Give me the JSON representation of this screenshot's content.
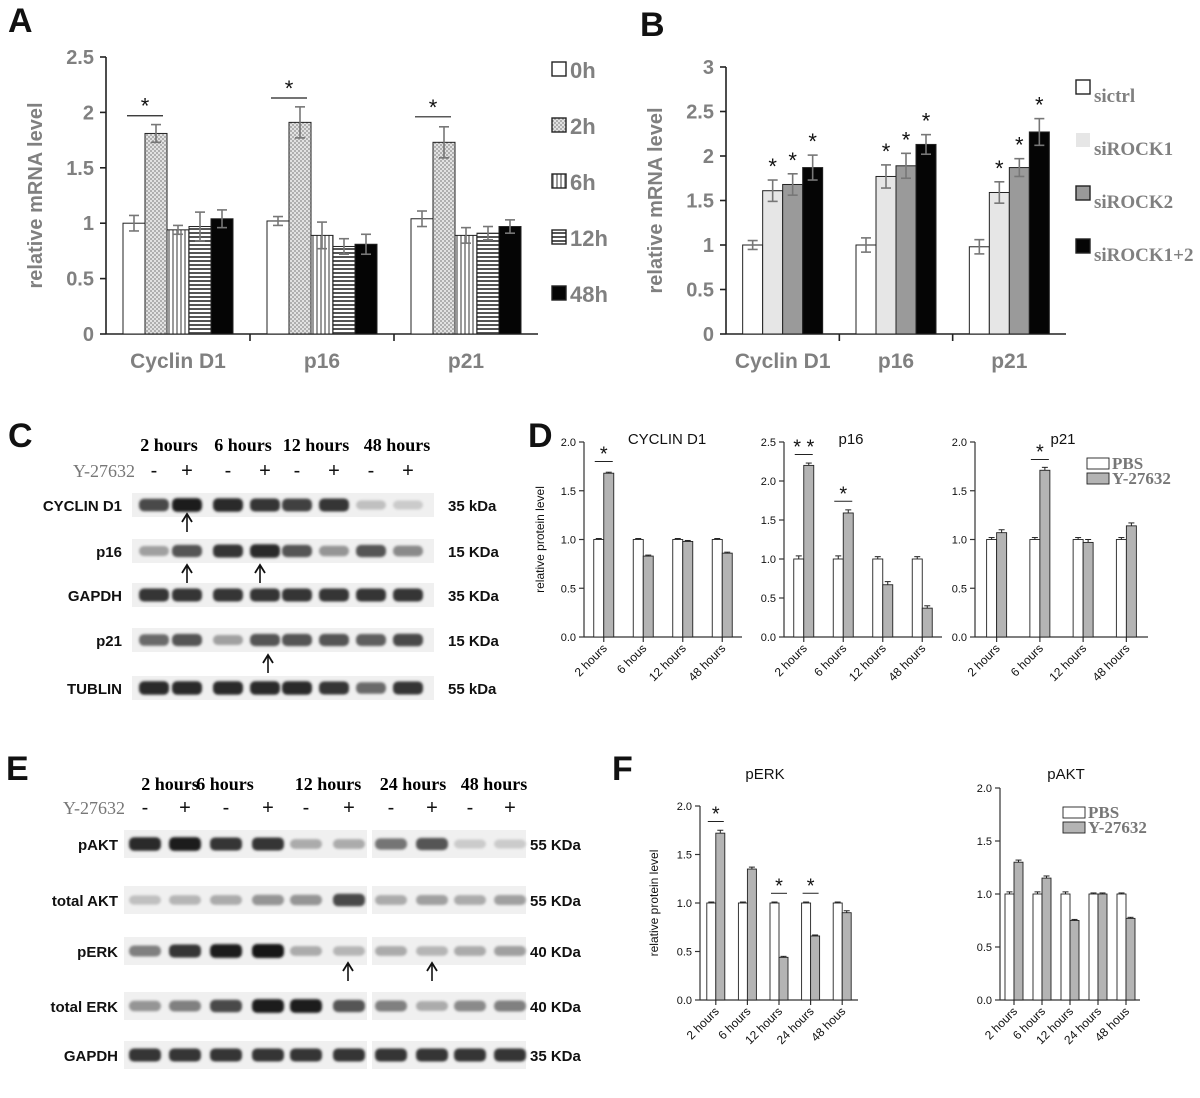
{
  "panels": {
    "A": "A",
    "B": "B",
    "C": "C",
    "D": "D",
    "E": "E",
    "F": "F"
  },
  "colors": {
    "open": "#ffffff",
    "gray": "#b4b4b4",
    "lightgray": "#e6e6e6",
    "midgray": "#9a9a9a",
    "black": "#050505",
    "band": "#1a1a1a"
  },
  "blotC": {
    "timepoints": [
      "2 hours",
      "6 hours",
      "12 hours",
      "48 hours"
    ],
    "treatment": "Y-27632",
    "signs": [
      "-",
      "+",
      "-",
      "+",
      "-",
      "+",
      "-",
      "+"
    ],
    "rows": [
      {
        "label": "CYCLIN D1",
        "kda": "35 kDa",
        "intensity": [
          0.75,
          0.95,
          0.9,
          0.85,
          0.8,
          0.85,
          0.2,
          0.15
        ]
      },
      {
        "label": "p16",
        "kda": "15 KDa",
        "intensity": [
          0.35,
          0.7,
          0.85,
          0.9,
          0.7,
          0.4,
          0.7,
          0.45
        ]
      },
      {
        "label": "GAPDH",
        "kda": "35 KDa",
        "intensity": [
          0.85,
          0.85,
          0.85,
          0.85,
          0.85,
          0.85,
          0.85,
          0.85
        ]
      },
      {
        "label": "p21",
        "kda": "15 KDa",
        "intensity": [
          0.6,
          0.7,
          0.35,
          0.7,
          0.7,
          0.7,
          0.65,
          0.75
        ]
      },
      {
        "label": "TUBLIN",
        "kda": "55 kDa",
        "intensity": [
          0.9,
          0.9,
          0.9,
          0.9,
          0.9,
          0.85,
          0.6,
          0.85
        ]
      }
    ]
  },
  "blotE": {
    "timepoints": [
      "2 hours",
      "6 hours",
      "12 hours",
      "24 hours",
      "48 hours"
    ],
    "treatment": "Y-27632",
    "signs": [
      "-",
      "+",
      "-",
      "+",
      "-",
      "+",
      "-",
      "+",
      "-",
      "+"
    ],
    "rows": [
      {
        "label": "pAKT",
        "kda": "55 KDa",
        "intensity": [
          0.9,
          0.95,
          0.85,
          0.85,
          0.3,
          0.3,
          0.55,
          0.7,
          0.15,
          0.15
        ]
      },
      {
        "label": "total AKT",
        "kda": "55 KDa",
        "intensity": [
          0.2,
          0.25,
          0.3,
          0.4,
          0.4,
          0.75,
          0.3,
          0.35,
          0.3,
          0.35
        ]
      },
      {
        "label": "pERK",
        "kda": "40 KDa",
        "intensity": [
          0.5,
          0.85,
          0.95,
          1.0,
          0.3,
          0.25,
          0.3,
          0.25,
          0.3,
          0.35
        ]
      },
      {
        "label": "total ERK",
        "kda": "40 KDa",
        "intensity": [
          0.4,
          0.5,
          0.75,
          0.95,
          0.95,
          0.7,
          0.5,
          0.3,
          0.45,
          0.5
        ]
      },
      {
        "label": "GAPDH",
        "kda": "35 KDa",
        "intensity": [
          0.85,
          0.85,
          0.85,
          0.85,
          0.85,
          0.85,
          0.85,
          0.85,
          0.85,
          0.85
        ]
      }
    ]
  },
  "chart_data": [
    {
      "panel": "A",
      "type": "bar",
      "ylabel": "relative mRNA level",
      "ylim": [
        0,
        2.5
      ],
      "yticks": [
        "0",
        "0.5",
        "1",
        "1.5",
        "2",
        "2.5"
      ],
      "categories": [
        "Cyclin D1",
        "p16",
        "p21"
      ],
      "legend_position": "right",
      "series": [
        {
          "name": "0h",
          "values": [
            1.0,
            1.02,
            1.04
          ],
          "errors": [
            0.07,
            0.04,
            0.07
          ],
          "pattern": "open"
        },
        {
          "name": "2h",
          "values": [
            1.81,
            1.91,
            1.73
          ],
          "errors": [
            0.08,
            0.14,
            0.14
          ],
          "pattern": "dots"
        },
        {
          "name": "6h",
          "values": [
            0.94,
            0.89,
            0.89
          ],
          "errors": [
            0.04,
            0.12,
            0.07
          ],
          "pattern": "vstripes"
        },
        {
          "name": "12h",
          "values": [
            0.97,
            0.79,
            0.91
          ],
          "errors": [
            0.13,
            0.07,
            0.06
          ],
          "pattern": "hstripes"
        },
        {
          "name": "48h",
          "values": [
            1.04,
            0.81,
            0.97
          ],
          "errors": [
            0.08,
            0.09,
            0.06
          ],
          "pattern": "solid"
        }
      ],
      "annotations": [
        {
          "label": "*",
          "category": 0,
          "from": 0,
          "to": 1,
          "y": 1.97
        },
        {
          "label": "*",
          "category": 1,
          "from": 0,
          "to": 1,
          "y": 2.13
        },
        {
          "label": "*",
          "category": 2,
          "from": 0,
          "to": 1,
          "y": 1.96
        }
      ]
    },
    {
      "panel": "B",
      "type": "bar",
      "ylabel": "relative mRNA level",
      "ylim": [
        0,
        3
      ],
      "yticks": [
        "0",
        "0.5",
        "1",
        "1.5",
        "2",
        "2.5",
        "3"
      ],
      "categories": [
        "Cyclin D1",
        "p16",
        "p21"
      ],
      "legend_position": "right",
      "series": [
        {
          "name": "sictrl",
          "values": [
            1.0,
            1.0,
            0.98
          ],
          "errors": [
            0.05,
            0.08,
            0.08
          ],
          "pattern": "open"
        },
        {
          "name": "siROCK1",
          "values": [
            1.61,
            1.77,
            1.59
          ],
          "errors": [
            0.12,
            0.13,
            0.12
          ],
          "pattern": "lightgray"
        },
        {
          "name": "siROCK2",
          "values": [
            1.68,
            1.89,
            1.87
          ],
          "errors": [
            0.12,
            0.14,
            0.1
          ],
          "pattern": "midgray"
        },
        {
          "name": "siROCK1+2",
          "values": [
            1.87,
            2.13,
            2.27
          ],
          "errors": [
            0.14,
            0.11,
            0.15
          ],
          "pattern": "solid"
        }
      ],
      "annotations": [
        {
          "label": "*",
          "category": 0,
          "series": 1
        },
        {
          "label": "*",
          "category": 0,
          "series": 2
        },
        {
          "label": "*",
          "category": 0,
          "series": 3
        },
        {
          "label": "*",
          "category": 1,
          "series": 1
        },
        {
          "label": "*",
          "category": 1,
          "series": 2
        },
        {
          "label": "*",
          "category": 1,
          "series": 3
        },
        {
          "label": "*",
          "category": 2,
          "series": 1
        },
        {
          "label": "*",
          "category": 2,
          "series": 2
        },
        {
          "label": "*",
          "category": 2,
          "series": 3
        }
      ]
    },
    {
      "panel": "D1",
      "type": "bar",
      "title": "CYCLIN D1",
      "ylabel": "relative protein level",
      "ylim": [
        0,
        2.0
      ],
      "yticks": [
        "0.0",
        "0.5",
        "1.0",
        "1.5",
        "2.0"
      ],
      "categories": [
        "2 hours",
        "6 hous",
        "12 hours",
        "48 hours"
      ],
      "series": [
        {
          "name": "PBS",
          "values": [
            1.0,
            1.0,
            1.0,
            1.0
          ],
          "errors": [
            0.01,
            0.01,
            0.01,
            0.01
          ]
        },
        {
          "name": "Y-27632",
          "values": [
            1.68,
            0.83,
            0.98,
            0.86
          ],
          "errors": [
            0.01,
            0.01,
            0.01,
            0.01
          ]
        }
      ],
      "annotations": [
        {
          "label": "*",
          "category": 0,
          "y": 1.8
        }
      ]
    },
    {
      "panel": "D2",
      "type": "bar",
      "title": "p16",
      "ylim": [
        0,
        2.5
      ],
      "yticks": [
        "0.0",
        "0.5",
        "1.0",
        "1.5",
        "2.0",
        "2.5"
      ],
      "categories": [
        "2 hours",
        "6 hours",
        "12 hours",
        "48 hours"
      ],
      "series": [
        {
          "name": "PBS",
          "values": [
            1.0,
            1.0,
            1.0,
            1.0
          ],
          "errors": [
            0.04,
            0.04,
            0.03,
            0.03
          ]
        },
        {
          "name": "Y-27632",
          "values": [
            2.2,
            1.59,
            0.67,
            0.37
          ],
          "errors": [
            0.03,
            0.04,
            0.04,
            0.03
          ]
        }
      ],
      "annotations": [
        {
          "label": "* *",
          "category": 0,
          "y": 2.34
        },
        {
          "label": "*",
          "category": 1,
          "y": 1.74
        }
      ]
    },
    {
      "panel": "D3",
      "type": "bar",
      "title": "p21",
      "ylim": [
        0,
        2.0
      ],
      "yticks": [
        "0.0",
        "0.5",
        "1.0",
        "1.5",
        "2.0"
      ],
      "categories": [
        "2 hours",
        "6 hours",
        "12 hours",
        "48 hours"
      ],
      "legend_position": "top-right",
      "series": [
        {
          "name": "PBS",
          "values": [
            1.0,
            1.0,
            1.0,
            1.0
          ],
          "errors": [
            0.02,
            0.02,
            0.02,
            0.02
          ]
        },
        {
          "name": "Y-27632",
          "values": [
            1.07,
            1.71,
            0.97,
            1.14
          ],
          "errors": [
            0.03,
            0.03,
            0.03,
            0.03
          ]
        }
      ],
      "annotations": [
        {
          "label": "*",
          "category": 1,
          "y": 1.82
        }
      ]
    },
    {
      "panel": "F1",
      "type": "bar",
      "title": "pERK",
      "ylabel": "relative protein level",
      "ylim": [
        0,
        2.0
      ],
      "yticks": [
        "0.0",
        "0.5",
        "1.0",
        "1.5",
        "2.0"
      ],
      "categories": [
        "2 hours",
        "6 hours",
        "12 hours",
        "24 hours",
        "48 hous"
      ],
      "series": [
        {
          "name": "PBS",
          "values": [
            1.0,
            1.0,
            1.0,
            1.0,
            1.0
          ],
          "errors": [
            0.01,
            0.01,
            0.01,
            0.01,
            0.01
          ]
        },
        {
          "name": "Y-27632",
          "values": [
            1.72,
            1.35,
            0.44,
            0.66,
            0.9
          ],
          "errors": [
            0.03,
            0.02,
            0.01,
            0.01,
            0.02
          ]
        }
      ],
      "annotations": [
        {
          "label": "*",
          "category": 0,
          "y": 1.84
        },
        {
          "label": "*",
          "category": 2,
          "y": 1.1
        },
        {
          "label": "*",
          "category": 3,
          "y": 1.1
        }
      ]
    },
    {
      "panel": "F2",
      "type": "bar",
      "title": "pAKT",
      "ylim": [
        0,
        2.0
      ],
      "yticks": [
        "0.0",
        "0.5",
        "1.0",
        "1.5",
        "2.0"
      ],
      "categories": [
        "2 hours",
        "6 hours",
        "12 hours",
        "24 hours",
        "48 hous"
      ],
      "legend_position": "top-right",
      "series": [
        {
          "name": "PBS",
          "values": [
            1.0,
            1.0,
            1.0,
            1.0,
            1.0
          ],
          "errors": [
            0.02,
            0.02,
            0.02,
            0.01,
            0.01
          ]
        },
        {
          "name": "Y-27632",
          "values": [
            1.3,
            1.15,
            0.75,
            1.0,
            0.77
          ],
          "errors": [
            0.02,
            0.02,
            0.01,
            0.01,
            0.01
          ]
        }
      ],
      "annotations": []
    }
  ]
}
